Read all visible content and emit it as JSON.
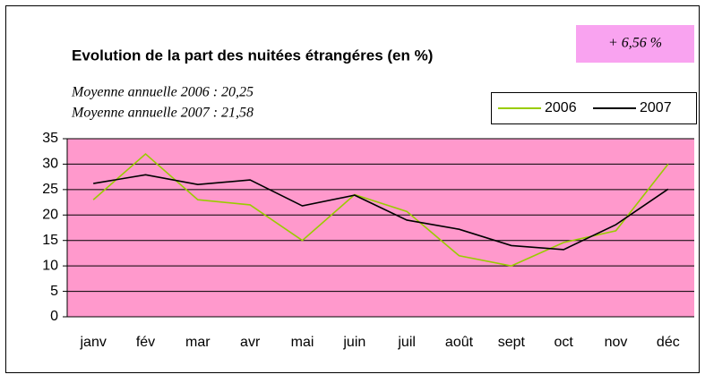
{
  "chart_data": {
    "type": "line",
    "title": "Evolution de la part des nuitées étrangéres (en %)",
    "annotation": "+ 6,56 %",
    "subtitle_lines": [
      "Moyenne annuelle 2006 : 20,25",
      "Moyenne annuelle 2007 : 21,58"
    ],
    "categories": [
      "janv",
      "fév",
      "mar",
      "avr",
      "mai",
      "juin",
      "juil",
      "août",
      "sept",
      "oct",
      "nov",
      "déc"
    ],
    "series": [
      {
        "name": "2006",
        "color": "#99cc00",
        "values": [
          23,
          32,
          23,
          22,
          15,
          24,
          20.7,
          12,
          10,
          14.6,
          16.9,
          30
        ]
      },
      {
        "name": "2007",
        "color": "#000000",
        "values": [
          26.2,
          27.9,
          26,
          26.9,
          21.8,
          23.9,
          19,
          17.2,
          14,
          13.2,
          18.1,
          25.1
        ]
      }
    ],
    "ylim": [
      0,
      35
    ],
    "yticks": [
      0,
      5,
      10,
      15,
      20,
      25,
      30,
      35
    ],
    "grid": true,
    "plot_background": "#ff99cc",
    "legend": "top-right"
  }
}
